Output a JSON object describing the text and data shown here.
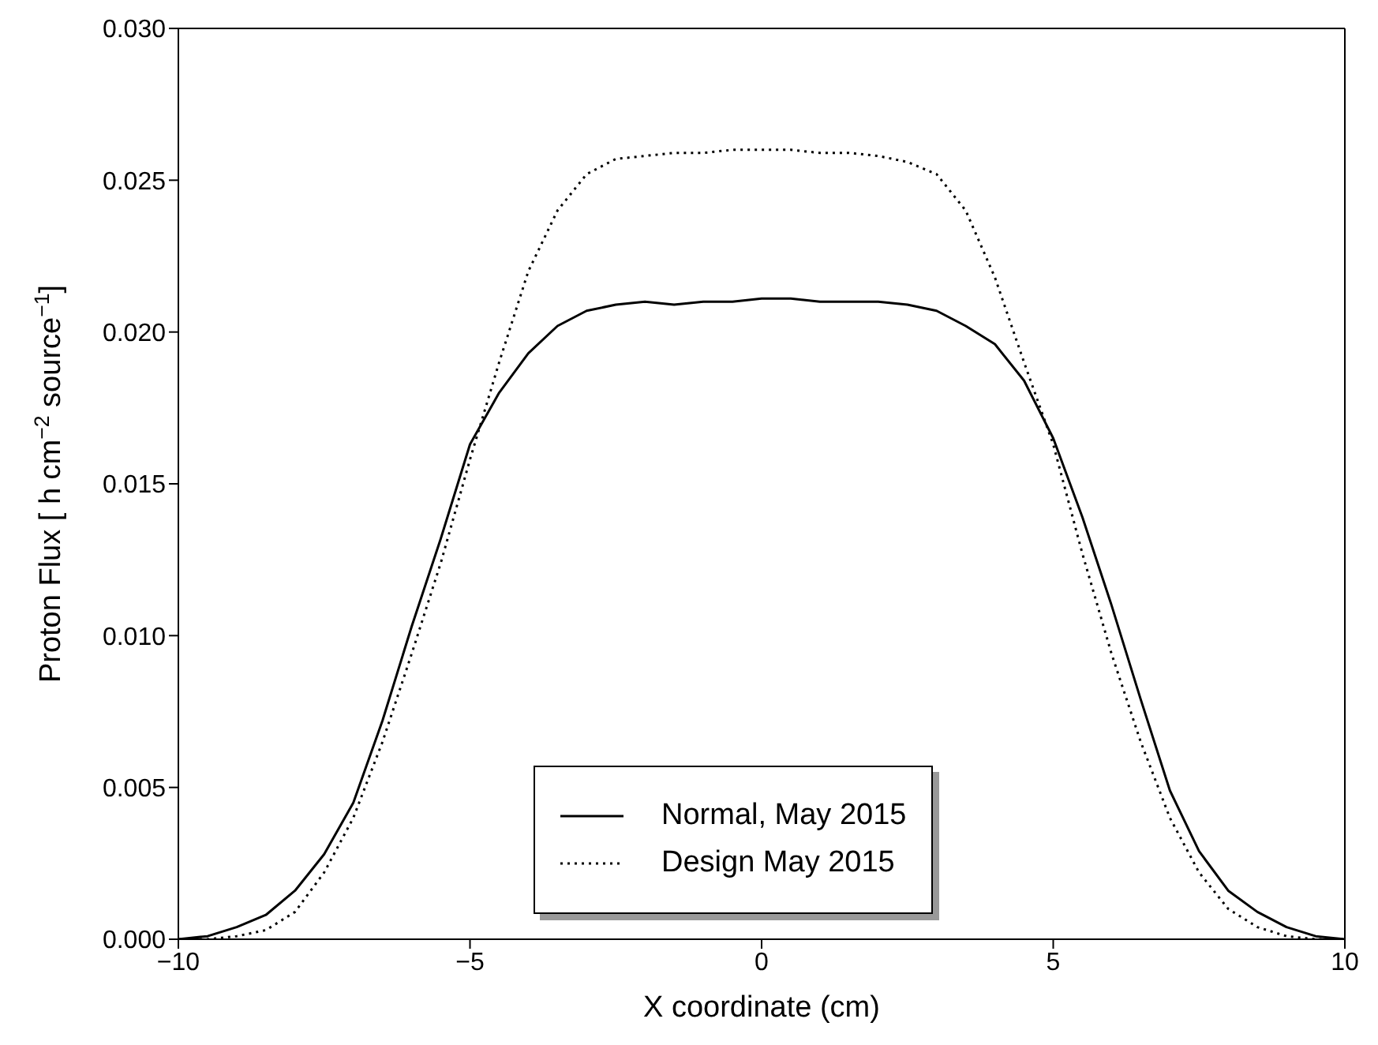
{
  "chart_data": {
    "type": "line",
    "xlabel": "X coordinate (cm)",
    "ylabel": "Proton Flux [ h cm$^{−2}$  source$^{−1}$]",
    "x": [
      -10,
      -9.5,
      -9,
      -8.5,
      -8,
      -7.5,
      -7,
      -6.5,
      -6,
      -5.5,
      -5,
      -4.5,
      -4,
      -3.5,
      -3,
      -2.5,
      -2,
      -1.5,
      -1,
      -0.5,
      0,
      0.5,
      1,
      1.5,
      2,
      2.5,
      3,
      3.5,
      4,
      4.5,
      5,
      5.5,
      6,
      6.5,
      7,
      7.5,
      8,
      8.5,
      9,
      9.5,
      10
    ],
    "series": [
      {
        "name": "Normal, May 2015",
        "color": "#000000",
        "line_style": "solid",
        "values": [
          0,
          0.0001,
          0.0004,
          0.0008,
          0.0016,
          0.0028,
          0.0045,
          0.0072,
          0.0103,
          0.0132,
          0.0163,
          0.018,
          0.0193,
          0.0202,
          0.0207,
          0.0209,
          0.021,
          0.0209,
          0.021,
          0.021,
          0.0211,
          0.0211,
          0.021,
          0.021,
          0.021,
          0.0209,
          0.0207,
          0.0202,
          0.0196,
          0.0184,
          0.0165,
          0.0139,
          0.011,
          0.0079,
          0.0049,
          0.0029,
          0.0016,
          0.0009,
          0.0004,
          0.0001,
          0
        ]
      },
      {
        "name": "Design May 2015",
        "color": "#000000",
        "line_style": "dotted",
        "values": [
          0,
          0,
          0.0001,
          0.0003,
          0.0009,
          0.0022,
          0.004,
          0.0065,
          0.0094,
          0.0124,
          0.0158,
          0.019,
          0.022,
          0.024,
          0.0252,
          0.0257,
          0.0258,
          0.0259,
          0.0259,
          0.026,
          0.026,
          0.026,
          0.0259,
          0.0259,
          0.0258,
          0.0256,
          0.0252,
          0.024,
          0.0218,
          0.019,
          0.0163,
          0.0127,
          0.0094,
          0.0065,
          0.004,
          0.0022,
          0.001,
          0.0004,
          0.0001,
          0,
          0
        ]
      }
    ],
    "xlim": [
      -10,
      10
    ],
    "xticks": [
      {
        "value": -10,
        "label": "−10"
      },
      {
        "value": -5,
        "label": "−5"
      },
      0,
      5,
      10
    ],
    "ylim": [
      0,
      0.03
    ],
    "yticks": [
      {
        "value": 0,
        "label": "0.000"
      },
      {
        "value": 0.005,
        "label": "0.005"
      },
      {
        "value": 0.01,
        "label": "0.010"
      },
      {
        "value": 0.015,
        "label": "0.015"
      },
      {
        "value": 0.02,
        "label": "0.020"
      },
      {
        "value": 0.025,
        "label": "0.025"
      },
      {
        "value": 0.03,
        "label": "0.030"
      }
    ],
    "legend": "bottom",
    "marker": "none"
  }
}
